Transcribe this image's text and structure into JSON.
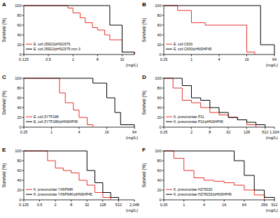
{
  "chart_data": [
    {
      "type": "line",
      "title": "A",
      "ylabel": "Survival (%)",
      "xlabel": "(mg/L)",
      "log": "x",
      "line_style": "step",
      "xlim": [
        0.125,
        64
      ],
      "xticks": [
        0.125,
        0.5,
        2,
        8,
        32
      ],
      "ylim": [
        0,
        100
      ],
      "yticks": [
        0,
        20,
        40,
        60,
        80,
        100
      ],
      "series": [
        {
          "name": "E. coli 25922/pHSG575",
          "color": "#e8322c",
          "x": [
            0.125,
            1,
            1.5,
            2,
            3,
            4,
            6,
            8,
            12,
            16,
            32,
            64
          ],
          "values": [
            100,
            100,
            95,
            85,
            75,
            65,
            55,
            50,
            40,
            30,
            5,
            0
          ]
        },
        {
          "name": "E. coli 25922/pHSG575-mcr-3",
          "color": "#000000",
          "x": [
            0.125,
            12,
            16,
            32,
            64
          ],
          "values": [
            100,
            100,
            60,
            5,
            0
          ]
        }
      ]
    },
    {
      "type": "line",
      "title": "B",
      "ylabel": "Survival (%)",
      "xlabel": "(mg/L)",
      "log": "x",
      "line_style": "step",
      "xlim": [
        0.25,
        64
      ],
      "xticks": [
        0.25,
        1,
        4,
        16,
        64
      ],
      "ylim": [
        0,
        100
      ],
      "yticks": [
        0,
        20,
        40,
        60,
        80,
        100
      ],
      "series": [
        {
          "name": "E. coli C600",
          "color": "#e8322c",
          "x": [
            0.25,
            0.5,
            1,
            2,
            16,
            24
          ],
          "values": [
            100,
            90,
            65,
            60,
            5,
            0
          ]
        },
        {
          "name": "E. coli C600/pHNSHP45",
          "color": "#000000",
          "x": [
            0.25,
            16,
            32,
            64
          ],
          "values": [
            100,
            100,
            20,
            0
          ]
        }
      ]
    },
    {
      "type": "line",
      "title": "C",
      "ylabel": "Survival (%)",
      "xlabel": "(mg/L)",
      "log": "x",
      "line_style": "step",
      "xlim": [
        0.25,
        64
      ],
      "xticks": [
        0.25,
        1,
        4,
        16,
        64
      ],
      "ylim": [
        0,
        100
      ],
      "yticks": [
        0,
        20,
        40,
        60,
        80,
        100
      ],
      "series": [
        {
          "name": "E. coli ZYTF186",
          "color": "#e8322c",
          "x": [
            0.25,
            1,
            1.5,
            2,
            3,
            4,
            6,
            8
          ],
          "values": [
            100,
            100,
            70,
            50,
            35,
            20,
            5,
            0
          ]
        },
        {
          "name": "E. coli ZYTF186/pHNSHP45",
          "color": "#000000",
          "x": [
            0.25,
            8,
            16,
            24,
            32,
            64
          ],
          "values": [
            100,
            90,
            60,
            30,
            5,
            0
          ]
        }
      ]
    },
    {
      "type": "line",
      "title": "D",
      "ylabel": "Survival (%)",
      "xlabel": "(mg/L)",
      "log": "x",
      "line_style": "step",
      "xlim": [
        0.25,
        1024
      ],
      "xticks": [
        0.25,
        2,
        8,
        32,
        128,
        512,
        {
          "value": 1024,
          "label": "1,024"
        }
      ],
      "ylim": [
        0,
        100
      ],
      "yticks": [
        0,
        20,
        40,
        60,
        80,
        100
      ],
      "series": [
        {
          "name": "K. pneumoniae P11",
          "color": "#e8322c",
          "x": [
            0.25,
            0.5,
            1,
            2,
            4,
            8,
            16,
            32,
            64,
            128,
            256
          ],
          "values": [
            100,
            80,
            55,
            50,
            40,
            30,
            25,
            20,
            15,
            5,
            0
          ]
        },
        {
          "name": "K. pneumoniae P11/pHNSHP45",
          "color": "#000000",
          "x": [
            0.25,
            1,
            2,
            4,
            8,
            16,
            32,
            64,
            128,
            256,
            512
          ],
          "values": [
            100,
            85,
            60,
            55,
            40,
            30,
            20,
            15,
            10,
            5,
            0
          ]
        }
      ]
    },
    {
      "type": "line",
      "title": "E",
      "ylabel": "Survival (%)",
      "xlabel": "(mg/L)",
      "log": "x",
      "line_style": "step",
      "xlim": [
        0.125,
        2048
      ],
      "xticks": [
        0.125,
        0.5,
        2,
        8,
        32,
        128,
        512,
        {
          "value": 2048,
          "label": "2,048"
        }
      ],
      "ylim": [
        0,
        100
      ],
      "yticks": [
        0,
        20,
        40,
        60,
        80,
        100
      ],
      "series": [
        {
          "name": "K. pneumoniae YX6P94K",
          "color": "#e8322c",
          "x": [
            0.125,
            1,
            2,
            4,
            8,
            16,
            32,
            64,
            128,
            256
          ],
          "values": [
            100,
            80,
            65,
            60,
            55,
            40,
            30,
            15,
            5,
            0
          ]
        },
        {
          "name": "K. pneumoniae YX6P94K/pHNSHP45",
          "color": "#000000",
          "x": [
            0.125,
            32,
            64,
            128,
            256,
            512
          ],
          "values": [
            100,
            60,
            35,
            15,
            5,
            0
          ]
        }
      ]
    },
    {
      "type": "line",
      "title": "F",
      "ylabel": "Survival (%)",
      "xlabel": "(mg/L)",
      "log": "x",
      "line_style": "step",
      "xlim": [
        0.25,
        512
      ],
      "xticks": [
        0.25,
        1,
        4,
        16,
        64,
        256,
        512
      ],
      "ylim": [
        0,
        100
      ],
      "yticks": [
        0,
        20,
        40,
        60,
        80,
        100
      ],
      "series": [
        {
          "name": "K. pneumoniae HZ78152",
          "color": "#e8322c",
          "x": [
            0.25,
            0.5,
            1,
            2,
            4,
            8,
            16,
            32,
            64,
            128,
            256
          ],
          "values": [
            100,
            85,
            60,
            45,
            40,
            38,
            35,
            30,
            20,
            10,
            0
          ]
        },
        {
          "name": "K. pneumoniae HZ78152/pHNSHP45",
          "color": "#000000",
          "x": [
            0.25,
            32,
            64,
            128,
            256,
            512
          ],
          "values": [
            100,
            80,
            50,
            20,
            5,
            0
          ]
        }
      ]
    }
  ]
}
